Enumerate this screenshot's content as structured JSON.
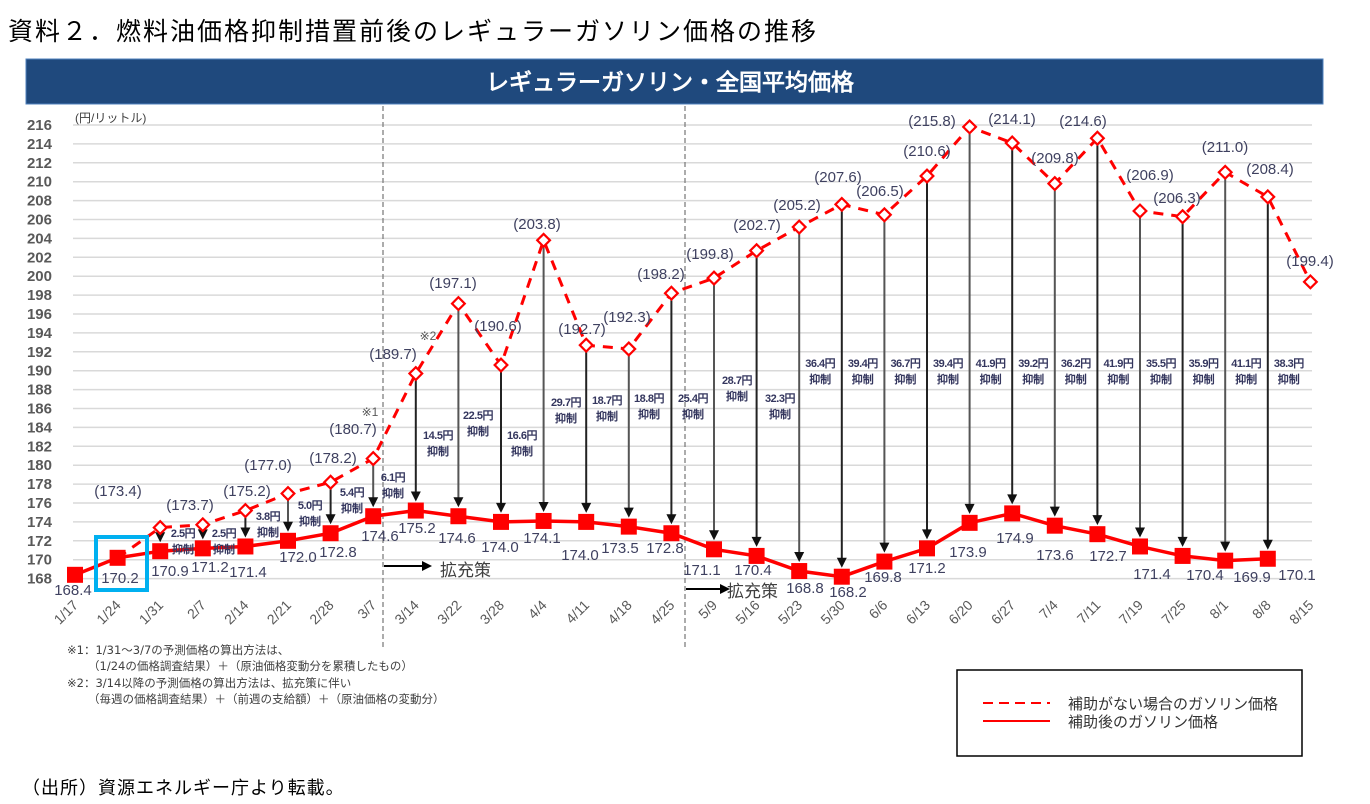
{
  "page": {
    "title": "資料２．燃料油価格抑制措置前後のレギュラーガソリン価格の推移",
    "source": "（出所）資源エネルギー庁より転載。"
  },
  "notes": [
    "※1：1/31～3/7の予測価格の算出方法は、",
    "（1/24の価格調査結果）＋（原油価格変動分を累積したもの）",
    "※2：3/14以降の予測価格の算出方法は、拡充策に伴い",
    "（毎週の価格調査結果）＋（前週の支給額）＋（原油価格の変動分）"
  ],
  "chart_data": {
    "type": "line",
    "title": "レギュラーガソリン・全国平均価格",
    "ylabel": "(円/リットル)",
    "xlabel": "",
    "ylim": [
      168,
      216
    ],
    "yticks": [
      216,
      214,
      212,
      210,
      208,
      206,
      204,
      202,
      200,
      198,
      196,
      194,
      192,
      190,
      188,
      186,
      184,
      182,
      180,
      178,
      176,
      174,
      172,
      170,
      168
    ],
    "grid": true,
    "categories": [
      "1/17",
      "1/24",
      "1/31",
      "2/7",
      "2/14",
      "2/21",
      "2/28",
      "3/7",
      "3/14",
      "3/22",
      "3/28",
      "4/4",
      "4/11",
      "4/18",
      "4/25",
      "5/9",
      "5/16",
      "5/23",
      "5/30",
      "6/6",
      "6/13",
      "6/20",
      "6/27",
      "7/4",
      "7/11",
      "7/19",
      "7/25",
      "8/1",
      "8/8",
      "8/15"
    ],
    "series": [
      {
        "name": "補助がない場合のガソリン価格",
        "style": "dashed",
        "color": "#ff0000",
        "values": [
          null,
          170.2,
          173.4,
          173.7,
          175.2,
          177.0,
          178.2,
          180.7,
          189.7,
          197.1,
          190.6,
          203.8,
          192.7,
          192.3,
          198.2,
          199.8,
          202.7,
          205.2,
          207.6,
          206.5,
          210.6,
          215.8,
          214.1,
          209.8,
          214.6,
          206.9,
          206.3,
          211.0,
          208.4,
          199.4
        ],
        "labels": [
          "",
          "",
          "(173.4)",
          "(173.7)",
          "(175.2)",
          "(177.0)",
          "(178.2)",
          "(180.7)",
          "(189.7)",
          "(197.1)",
          "(190.6)",
          "(203.8)",
          "(192.7)",
          "(192.3)",
          "(198.2)",
          "(199.8)",
          "(202.7)",
          "(205.2)",
          "(207.6)",
          "(206.5)",
          "(210.6)",
          "(215.8)",
          "(214.1)",
          "(209.8)",
          "(214.6)",
          "(206.9)",
          "(206.3)",
          "(211.0)",
          "(208.4)",
          "(199.4)"
        ]
      },
      {
        "name": "補助後のガソリン価格",
        "style": "solid",
        "color": "#ff0000",
        "values": [
          168.4,
          170.2,
          170.9,
          171.2,
          171.4,
          172.0,
          172.8,
          174.6,
          175.2,
          174.6,
          174.0,
          174.1,
          174.0,
          173.5,
          172.8,
          171.1,
          170.4,
          168.8,
          168.2,
          169.8,
          171.2,
          173.9,
          174.9,
          173.6,
          172.7,
          171.4,
          170.4,
          169.9,
          170.1,
          null
        ],
        "labels": [
          "168.4",
          "170.2",
          "170.9",
          "171.2",
          "171.4",
          "172.0",
          "172.8",
          "174.6",
          "175.2",
          "174.6",
          "174.0",
          "174.1",
          "174.0",
          "173.5",
          "172.8",
          "171.1",
          "170.4",
          "168.8",
          "168.2",
          "169.8",
          "171.2",
          "173.9",
          "174.9",
          "173.6",
          "172.7",
          "171.4",
          "170.4",
          "169.9",
          "170.1",
          ""
        ]
      }
    ],
    "suppression": [
      {
        "category": "1/31",
        "amount": "2.5円",
        "text": "抑制"
      },
      {
        "category": "2/7",
        "amount": "2.5円",
        "text": "抑制"
      },
      {
        "category": "2/14",
        "amount": "3.8円",
        "text": "抑制"
      },
      {
        "category": "2/21",
        "amount": "5.0円",
        "text": "抑制"
      },
      {
        "category": "2/28",
        "amount": "5.4円",
        "text": "抑制"
      },
      {
        "category": "3/7",
        "amount": "6.1円",
        "text": "抑制"
      },
      {
        "category": "3/14",
        "amount": "14.5円",
        "text": "抑制"
      },
      {
        "category": "3/22",
        "amount": "22.5円",
        "text": "抑制"
      },
      {
        "category": "3/28",
        "amount": "16.6円",
        "text": "抑制"
      },
      {
        "category": "4/4",
        "amount": "29.7円",
        "text": "抑制"
      },
      {
        "category": "4/11",
        "amount": "18.7円",
        "text": "抑制"
      },
      {
        "category": "4/18",
        "amount": "18.8円",
        "text": "抑制"
      },
      {
        "category": "4/25",
        "amount": "25.4円",
        "text": "抑制"
      },
      {
        "category": "5/9",
        "amount": "28.7円",
        "text": "抑制"
      },
      {
        "category": "5/16",
        "amount": "32.3円",
        "text": "抑制"
      },
      {
        "category": "5/23",
        "amount": "36.4円",
        "text": "抑制"
      },
      {
        "category": "5/30",
        "amount": "39.4円",
        "text": "抑制"
      },
      {
        "category": "6/6",
        "amount": "36.7円",
        "text": "抑制"
      },
      {
        "category": "6/13",
        "amount": "39.4円",
        "text": "抑制"
      },
      {
        "category": "6/20",
        "amount": "41.9円",
        "text": "抑制"
      },
      {
        "category": "6/27",
        "amount": "39.2円",
        "text": "抑制"
      },
      {
        "category": "7/4",
        "amount": "36.2円",
        "text": "抑制"
      },
      {
        "category": "7/11",
        "amount": "41.9円",
        "text": "抑制"
      },
      {
        "category": "7/19",
        "amount": "35.5円",
        "text": "抑制"
      },
      {
        "category": "7/25",
        "amount": "35.9円",
        "text": "抑制"
      },
      {
        "category": "8/1",
        "amount": "41.1円",
        "text": "抑制"
      },
      {
        "category": "8/8",
        "amount": "38.3円",
        "text": "抑制"
      }
    ],
    "annotations": [
      {
        "text": "※1",
        "category": "3/7"
      },
      {
        "text": "※2",
        "category": "3/14"
      }
    ],
    "phase_markers": [
      {
        "after": "3/7",
        "label": "拡充策"
      },
      {
        "after": "4/25",
        "label": "拡充策"
      }
    ],
    "highlight": {
      "category": "1/24",
      "color": "#00b0f0"
    },
    "legend": {
      "position": "bottom-right",
      "entries": [
        "補助がない場合のガソリン価格",
        "補助後のガソリン価格"
      ]
    },
    "colors": {
      "banner": "#1f497d",
      "banner_text": "#ffffff",
      "gridline": "#d9d9d9",
      "axis_text": "#595959"
    }
  }
}
